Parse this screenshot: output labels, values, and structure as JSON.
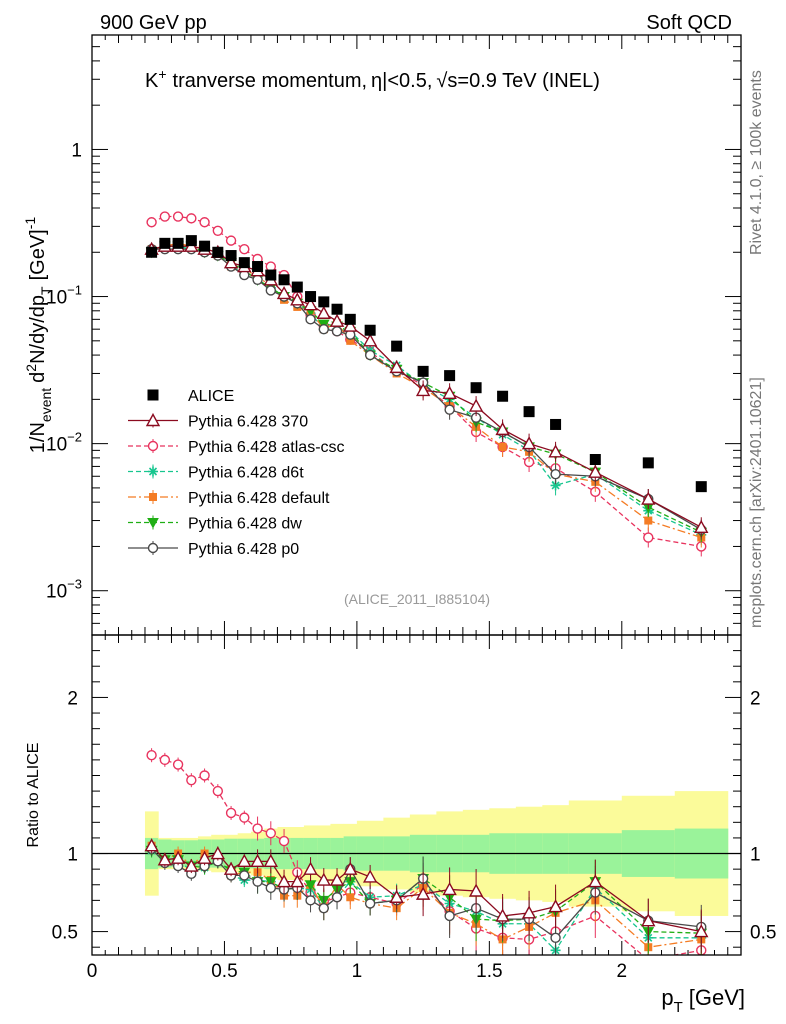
{
  "header": {
    "left": "900 GeV pp",
    "right": "Soft QCD"
  },
  "side_text": {
    "rivet": "Rivet 4.1.0, ≥ 100k events",
    "mcplots": "mcplots.cern.ch [arXiv:2401.10621]"
  },
  "colors": {
    "ALICE": "#000000",
    "p370": "#8b0a1f",
    "atlas": "#e8335e",
    "d6t": "#17c68f",
    "default": "#f47c24",
    "dw": "#1fae14",
    "p0": "#4a4a4a",
    "band_inner": "#9af39a",
    "band_outer": "#fbfb9a"
  },
  "chart_data": [
    {
      "type": "scatter",
      "title": "K⁺ tranverse momentum, |η|<0.5, √s=0.9 TeV (INEL)",
      "title_parts": {
        "k": "K",
        "kplus": "+",
        "tranverse": "tranverse momentum,",
        "eta": "η",
        "etacut": "|<0.5,",
        "sqrt": "√",
        "s": "s",
        "energy": "=0.9 TeV (INEL)"
      },
      "ylabel": "1/N_event d²N/dy/dp_T [GeV]⁻¹",
      "ylabel_parts": {
        "a": "1/N",
        "event": "event",
        "b": "d",
        "two": "2",
        "c": "N/dy/dp",
        "T": "T",
        "unit": "[GeV]",
        "m1": "-1"
      },
      "yscale": "log",
      "ylim": [
        0.0005,
        6
      ],
      "y_ticks": [
        {
          "m": "1",
          "e": ""
        },
        {
          "m": "10",
          "e": "−1"
        },
        {
          "m": "10",
          "e": "−2"
        },
        {
          "m": "10",
          "e": "−3"
        }
      ],
      "watermark": "(ALICE_2011_I885104)",
      "legend_position": "middle-left",
      "legend": [
        "ALICE",
        "Pythia 6.428 370",
        "Pythia 6.428 atlas-csc",
        "Pythia 6.428 d6t",
        "Pythia 6.428 default",
        "Pythia 6.428 dw",
        "Pythia 6.428 p0"
      ],
      "x": [
        0.225,
        0.275,
        0.325,
        0.375,
        0.425,
        0.475,
        0.525,
        0.575,
        0.625,
        0.675,
        0.725,
        0.775,
        0.825,
        0.875,
        0.925,
        0.975,
        1.05,
        1.15,
        1.25,
        1.35,
        1.45,
        1.55,
        1.65,
        1.75,
        1.9,
        2.1,
        2.3
      ],
      "series": [
        {
          "name": "ALICE",
          "values": [
            0.2,
            0.23,
            0.23,
            0.24,
            0.22,
            0.2,
            0.19,
            0.17,
            0.16,
            0.14,
            0.13,
            0.116,
            0.1,
            0.092,
            0.082,
            0.07,
            0.059,
            0.046,
            0.031,
            0.029,
            0.024,
            0.021,
            0.0165,
            0.0135,
            0.0078,
            0.0074,
            0.0051
          ]
        },
        {
          "name": "Pythia 6.428 370",
          "values": [
            0.21,
            0.22,
            0.22,
            0.22,
            0.21,
            0.2,
            0.17,
            0.16,
            0.15,
            0.13,
            0.105,
            0.095,
            0.088,
            0.077,
            0.068,
            0.063,
            0.05,
            0.033,
            0.023,
            0.022,
            0.018,
            0.0125,
            0.01,
            0.0088,
            0.0064,
            0.0042,
            0.0027
          ]
        },
        {
          "name": "Pythia 6.428 atlas-csc",
          "values": [
            0.32,
            0.35,
            0.35,
            0.34,
            0.32,
            0.28,
            0.24,
            0.21,
            0.18,
            0.16,
            0.14,
            0.1,
            0.075,
            0.063,
            0.058,
            0.051,
            0.042,
            0.031,
            0.025,
            0.018,
            0.012,
            0.0095,
            0.0075,
            0.0068,
            0.0047,
            0.0023,
            0.002
          ]
        },
        {
          "name": "Pythia 6.428 d6t",
          "values": [
            0.2,
            0.22,
            0.22,
            0.21,
            0.2,
            0.19,
            0.165,
            0.14,
            0.13,
            0.115,
            0.1,
            0.09,
            0.077,
            0.06,
            0.06,
            0.058,
            0.043,
            0.034,
            0.025,
            0.02,
            0.015,
            0.0115,
            0.009,
            0.0052,
            0.0062,
            0.0035,
            0.0024
          ]
        },
        {
          "name": "Pythia 6.428 default",
          "values": [
            0.21,
            0.22,
            0.23,
            0.22,
            0.22,
            0.19,
            0.16,
            0.15,
            0.14,
            0.115,
            0.095,
            0.085,
            0.08,
            0.06,
            0.066,
            0.05,
            0.04,
            0.03,
            0.024,
            0.018,
            0.013,
            0.0095,
            0.0088,
            0.0062,
            0.0055,
            0.003,
            0.0023
          ]
        },
        {
          "name": "Pythia 6.428 dw",
          "values": [
            0.2,
            0.22,
            0.22,
            0.22,
            0.2,
            0.19,
            0.17,
            0.15,
            0.13,
            0.115,
            0.1,
            0.09,
            0.08,
            0.065,
            0.063,
            0.058,
            0.04,
            0.032,
            0.026,
            0.021,
            0.014,
            0.012,
            0.0095,
            0.0085,
            0.0064,
            0.0037,
            0.0025
          ]
        },
        {
          "name": "Pythia 6.428 p0",
          "values": [
            0.21,
            0.21,
            0.21,
            0.21,
            0.2,
            0.19,
            0.16,
            0.14,
            0.13,
            0.11,
            0.1,
            0.09,
            0.07,
            0.06,
            0.058,
            0.055,
            0.04,
            0.031,
            0.026,
            0.017,
            0.015,
            0.012,
            0.0095,
            0.0062,
            0.006,
            0.0042,
            0.0026
          ]
        }
      ]
    },
    {
      "type": "scatter",
      "ylabel": "Ratio to ALICE",
      "xlabel": "p_T [GeV]",
      "xlabel_parts": {
        "p": "p",
        "T": "T",
        "unit": "[GeV]"
      },
      "xlim": [
        0,
        2.45
      ],
      "ylim": [
        0.35,
        2.4
      ],
      "x_ticks": [
        0,
        0.5,
        1,
        1.5,
        2
      ],
      "x_tick_labels": [
        "0",
        "0.5",
        "1",
        "1.5",
        "2"
      ],
      "y_ticks": [
        0.5,
        1,
        2
      ],
      "y_tick_labels": [
        "0.5",
        "1",
        "2"
      ],
      "x": [
        0.225,
        0.275,
        0.325,
        0.375,
        0.425,
        0.475,
        0.525,
        0.575,
        0.625,
        0.675,
        0.725,
        0.775,
        0.825,
        0.875,
        0.925,
        0.975,
        1.05,
        1.15,
        1.25,
        1.35,
        1.45,
        1.55,
        1.65,
        1.75,
        1.9,
        2.1,
        2.3
      ],
      "band_edges": [
        0.2,
        0.25,
        0.3,
        0.35,
        0.4,
        0.45,
        0.5,
        0.55,
        0.6,
        0.65,
        0.7,
        0.75,
        0.8,
        0.85,
        0.9,
        0.95,
        1.0,
        1.1,
        1.2,
        1.3,
        1.4,
        1.5,
        1.6,
        1.7,
        1.8,
        2.0,
        2.2,
        2.4
      ],
      "band_inner_halfwidth": [
        0.1,
        0.09,
        0.085,
        0.085,
        0.09,
        0.09,
        0.095,
        0.095,
        0.095,
        0.1,
        0.1,
        0.1,
        0.1,
        0.1,
        0.1,
        0.11,
        0.11,
        0.11,
        0.12,
        0.12,
        0.12,
        0.13,
        0.13,
        0.13,
        0.13,
        0.15,
        0.16
      ],
      "band_outer_halfwidth": [
        0.27,
        0.1,
        0.1,
        0.1,
        0.11,
        0.12,
        0.12,
        0.13,
        0.14,
        0.16,
        0.17,
        0.17,
        0.18,
        0.18,
        0.19,
        0.19,
        0.21,
        0.23,
        0.25,
        0.27,
        0.28,
        0.29,
        0.3,
        0.31,
        0.34,
        0.37,
        0.4
      ],
      "series": [
        {
          "name": "Pythia 6.428 370",
          "values": [
            1.05,
            0.96,
            0.97,
            0.92,
            0.97,
            1.0,
            0.9,
            0.95,
            0.95,
            0.95,
            0.82,
            0.82,
            0.9,
            0.83,
            0.83,
            0.9,
            0.85,
            0.72,
            0.74,
            0.77,
            0.76,
            0.6,
            0.62,
            0.66,
            0.82,
            0.57,
            0.5
          ]
        },
        {
          "name": "Pythia 6.428 atlas-csc",
          "values": [
            1.63,
            1.6,
            1.57,
            1.47,
            1.5,
            1.4,
            1.26,
            1.23,
            1.16,
            1.13,
            1.08,
            0.88,
            0.75,
            0.69,
            0.72,
            0.75,
            0.72,
            0.68,
            0.8,
            0.63,
            0.52,
            0.46,
            0.45,
            0.5,
            0.6,
            0.32,
            0.38
          ]
        },
        {
          "name": "Pythia 6.428 d6t",
          "values": [
            1.02,
            0.96,
            0.97,
            0.88,
            0.91,
            0.95,
            0.86,
            0.83,
            0.83,
            0.82,
            0.77,
            0.78,
            0.77,
            0.65,
            0.72,
            0.82,
            0.72,
            0.73,
            0.8,
            0.68,
            0.63,
            0.55,
            0.55,
            0.38,
            0.78,
            0.46,
            0.46
          ]
        },
        {
          "name": "Pythia 6.428 default",
          "values": [
            1.05,
            0.96,
            1.0,
            0.92,
            1.0,
            0.95,
            0.86,
            0.88,
            0.88,
            0.83,
            0.73,
            0.73,
            0.8,
            0.65,
            0.8,
            0.72,
            0.68,
            0.65,
            0.78,
            0.62,
            0.55,
            0.45,
            0.53,
            0.62,
            0.7,
            0.4,
            0.45
          ]
        },
        {
          "name": "Pythia 6.428 dw",
          "values": [
            1.02,
            0.96,
            0.96,
            0.92,
            0.91,
            0.95,
            0.89,
            0.88,
            0.82,
            0.82,
            0.77,
            0.78,
            0.8,
            0.7,
            0.77,
            0.82,
            0.68,
            0.7,
            0.84,
            0.72,
            0.58,
            0.57,
            0.58,
            0.63,
            0.82,
            0.5,
            0.49
          ]
        },
        {
          "name": "Pythia 6.428 p0",
          "values": [
            1.03,
            0.94,
            0.92,
            0.87,
            0.92,
            0.95,
            0.86,
            0.86,
            0.82,
            0.78,
            0.77,
            0.78,
            0.7,
            0.65,
            0.72,
            0.9,
            0.68,
            0.7,
            0.84,
            0.6,
            0.65,
            0.58,
            0.58,
            0.46,
            0.75,
            0.57,
            0.53
          ]
        }
      ]
    }
  ]
}
